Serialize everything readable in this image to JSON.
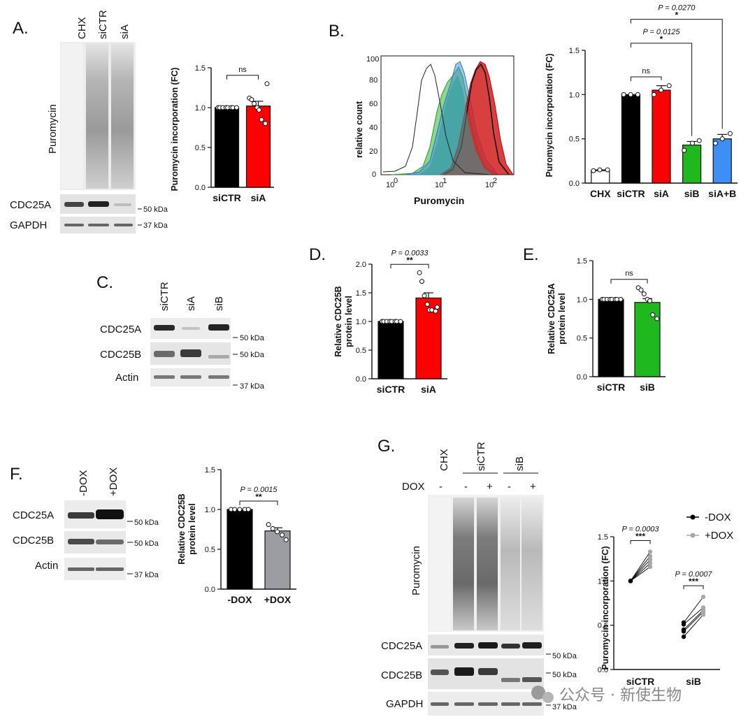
{
  "panels": {
    "A": {
      "letter": "A.",
      "lanes": [
        "CHX",
        "siCTR",
        "siA"
      ],
      "blot_labels": [
        "Puromycin",
        "CDC25A",
        "GAPDH"
      ],
      "mw": [
        "50 kDa",
        "37 kDa"
      ]
    },
    "B": {
      "letter": "B.",
      "flow": {
        "ylabel": "relative count",
        "xlabel": "Puromycin",
        "yticks": [
          "0",
          "20",
          "40",
          "60",
          "80",
          "100"
        ],
        "xticks": [
          "10",
          "10",
          "10"
        ],
        "xtick_exp": [
          "0",
          "1",
          "2"
        ]
      }
    },
    "C": {
      "letter": "C.",
      "lanes": [
        "siCTR",
        "siA",
        "siB"
      ],
      "blot_labels": [
        "CDC25A",
        "CDC25B",
        "Actin"
      ],
      "mw": [
        "50 kDa",
        "50 kDa",
        "37 kDa"
      ]
    },
    "D": {
      "letter": "D."
    },
    "E": {
      "letter": "E."
    },
    "F": {
      "letter": "F.",
      "lanes": [
        "-DOX",
        "+DOX"
      ],
      "blot_labels": [
        "CDC25A",
        "CDC25B",
        "Actin"
      ],
      "mw": [
        "50 kDa",
        "50 kDa",
        "37 kDa"
      ]
    },
    "G": {
      "letter": "G.",
      "lanes": [
        "CHX",
        "siCTR",
        "siB"
      ],
      "dox_label": "DOX",
      "dox_signs": [
        "-",
        "-",
        "+",
        "-",
        "+"
      ],
      "blot_labels": [
        "Puromycin",
        "CDC25A",
        "CDC25B",
        "GAPDH"
      ],
      "mw": [
        "50 kDa",
        "50 kDa",
        "37 kDa"
      ]
    }
  },
  "watermark": "公众号 · 新使生物",
  "chart_data": [
    {
      "id": "A-bar",
      "type": "bar",
      "ylabel": "Puromycin incorporation (FC)",
      "categories": [
        "siCTR",
        "siA"
      ],
      "values": [
        1.0,
        1.02
      ],
      "errors": [
        0.0,
        0.06
      ],
      "colors": [
        "#000000",
        "#ff0000"
      ],
      "ylim": [
        0,
        1.5
      ],
      "yticks": [
        "0.0",
        "0.5",
        "1.0",
        "1.5"
      ],
      "points": [
        [
          1.0,
          1.0,
          1.0,
          1.0,
          1.0,
          1.0,
          1.0,
          1.0
        ],
        [
          1.12,
          1.1,
          1.05,
          1.0,
          0.97,
          0.85,
          0.8,
          1.3
        ]
      ],
      "sig": [
        {
          "pair": [
            0,
            1
          ],
          "text": "ns"
        }
      ]
    },
    {
      "id": "B-bar",
      "type": "bar",
      "ylabel": "Puromycin incorporation (FC)",
      "categories": [
        "CHX",
        "siCTR",
        "siA",
        "siB",
        "siA+B"
      ],
      "values": [
        0.14,
        1.0,
        1.05,
        0.43,
        0.5
      ],
      "errors": [
        0.01,
        0.0,
        0.05,
        0.04,
        0.05
      ],
      "colors": [
        "#ffffff",
        "#000000",
        "#ff0000",
        "#1fb81f",
        "#3d8ef5"
      ],
      "ylim": [
        0,
        1.5
      ],
      "yticks": [
        "0.0",
        "0.5",
        "1.0",
        "1.5"
      ],
      "points": [
        [
          0.14,
          0.15,
          0.15
        ],
        [
          1.0,
          1.0,
          1.0
        ],
        [
          1.0,
          1.05,
          1.1
        ],
        [
          0.37,
          0.45,
          0.48
        ],
        [
          0.45,
          0.5,
          0.56
        ]
      ],
      "sig": [
        {
          "pair": [
            1,
            2
          ],
          "text": "ns"
        },
        {
          "pair": [
            1,
            3
          ],
          "text": "*",
          "p": "P = 0.0125"
        },
        {
          "pair": [
            1,
            4
          ],
          "text": "*",
          "p": "P = 0.0270"
        }
      ]
    },
    {
      "id": "D-bar",
      "type": "bar",
      "ylabel": "Relative CDC25B",
      "ylabel2": "protein level",
      "categories": [
        "siCTR",
        "siA"
      ],
      "values": [
        1.0,
        1.41
      ],
      "errors": [
        0.0,
        0.09
      ],
      "colors": [
        "#000000",
        "#ff0000"
      ],
      "ylim": [
        0,
        2.0
      ],
      "yticks": [
        "0.0",
        "0.5",
        "1.0",
        "1.5",
        "2.0"
      ],
      "points": [
        [
          1.0,
          1.0,
          1.0,
          1.0,
          1.0,
          1.0,
          1.0,
          1.0
        ],
        [
          1.85,
          1.7,
          1.45,
          1.3,
          1.2,
          1.2,
          1.18,
          1.25
        ]
      ],
      "sig": [
        {
          "pair": [
            0,
            1
          ],
          "text": "**",
          "p": "P = 0.0033"
        }
      ]
    },
    {
      "id": "E-bar",
      "type": "bar",
      "ylabel": "Relative CDC25A",
      "ylabel2": "protein level",
      "categories": [
        "siCTR",
        "siB"
      ],
      "values": [
        1.0,
        0.96
      ],
      "errors": [
        0.0,
        0.05
      ],
      "colors": [
        "#000000",
        "#1fb81f"
      ],
      "ylim": [
        0,
        1.5
      ],
      "yticks": [
        "0.0",
        "0.5",
        "1.0",
        "1.5"
      ],
      "points": [
        [
          1.0,
          1.0,
          1.0,
          1.0,
          1.0,
          1.0,
          1.0,
          1.0
        ],
        [
          1.15,
          1.12,
          1.07,
          1.0,
          0.98,
          0.8,
          0.75
        ]
      ],
      "sig": [
        {
          "pair": [
            0,
            1
          ],
          "text": "ns"
        }
      ]
    },
    {
      "id": "F-bar",
      "type": "bar",
      "ylabel": "Relative CDC25B",
      "ylabel2": "protein level",
      "categories": [
        "-DOX",
        "+DOX"
      ],
      "values": [
        1.0,
        0.73
      ],
      "errors": [
        0.0,
        0.04
      ],
      "colors": [
        "#000000",
        "#9c9ca3"
      ],
      "ylim": [
        0,
        1.5
      ],
      "yticks": [
        "0.0",
        "0.5",
        "1.0",
        "1.5"
      ],
      "points": [
        [
          1.0,
          1.0,
          1.0,
          1.0,
          1.0
        ],
        [
          0.81,
          0.76,
          0.72,
          0.68,
          0.62
        ]
      ],
      "sig": [
        {
          "pair": [
            0,
            1
          ],
          "text": "**",
          "p": "P = 0.0015"
        }
      ]
    },
    {
      "id": "G-paired",
      "type": "scatter",
      "ylabel": "Puromycin incorporation (FC)",
      "categories": [
        "siCTR",
        "siB"
      ],
      "ylim": [
        0,
        1.5
      ],
      "yticks": [
        "0.0",
        "0.5",
        "1.0",
        "1.5"
      ],
      "series": [
        {
          "name": "-DOX",
          "color": "#000000"
        },
        {
          "name": "+DOX",
          "color": "#a8a8a8"
        }
      ],
      "pairs": [
        [
          [
            1.0,
            1.33
          ],
          [
            1.0,
            1.28
          ],
          [
            1.0,
            1.24
          ],
          [
            1.0,
            1.2
          ],
          [
            1.0,
            1.16
          ]
        ],
        [
          [
            0.53,
            0.82
          ],
          [
            0.51,
            0.7
          ],
          [
            0.45,
            0.67
          ],
          [
            0.43,
            0.65
          ],
          [
            0.37,
            0.62
          ]
        ]
      ],
      "sig": [
        {
          "group": 0,
          "text": "***",
          "p": "P = 0.0003"
        },
        {
          "group": 1,
          "text": "***",
          "p": "P = 0.0007"
        }
      ]
    }
  ]
}
